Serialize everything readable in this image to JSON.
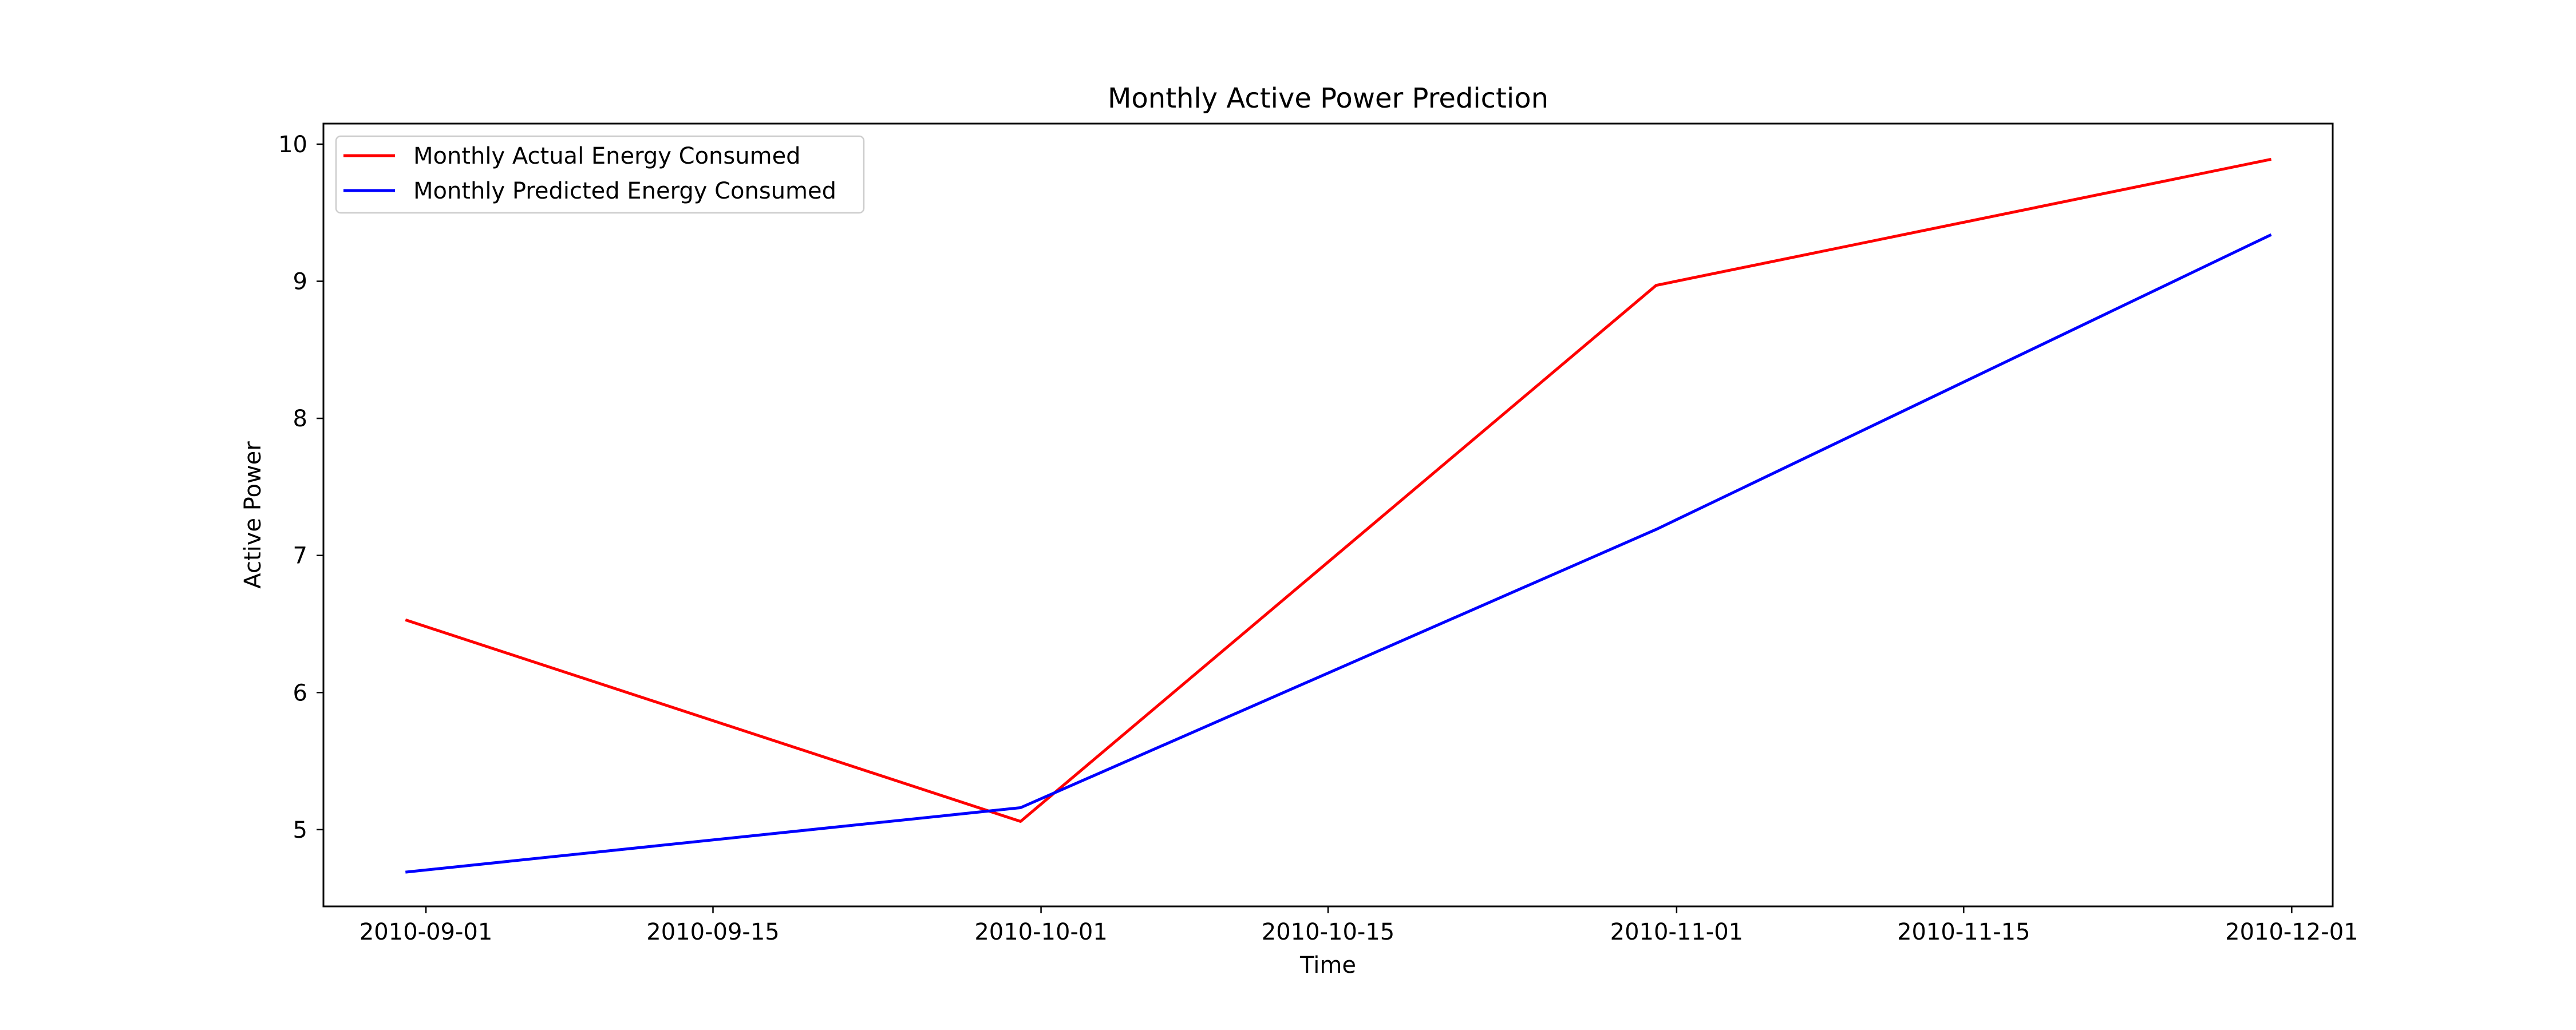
{
  "chart_data": {
    "type": "line",
    "title": "Monthly Active Power Prediction",
    "xlabel": "Time",
    "ylabel": "Active Power",
    "x": [
      "2010-08-31",
      "2010-09-30",
      "2010-10-31",
      "2010-11-30"
    ],
    "xlim": [
      "2010-08-27",
      "2010-12-03"
    ],
    "ylim": [
      4.44,
      10.15
    ],
    "xticks": [
      "2010-09-01",
      "2010-09-15",
      "2010-10-01",
      "2010-10-15",
      "2010-11-01",
      "2010-11-15",
      "2010-12-01"
    ],
    "yticks": [
      5,
      6,
      7,
      8,
      9,
      10
    ],
    "grid": false,
    "legend_position": "upper left",
    "series": [
      {
        "name": "Monthly Actual Energy Consumed",
        "color": "#ff0000",
        "values": [
          6.53,
          5.06,
          8.97,
          9.89
        ]
      },
      {
        "name": "Monthly Predicted Energy Consumed",
        "color": "#0000ff",
        "values": [
          4.69,
          5.16,
          7.19,
          9.34
        ]
      }
    ]
  }
}
